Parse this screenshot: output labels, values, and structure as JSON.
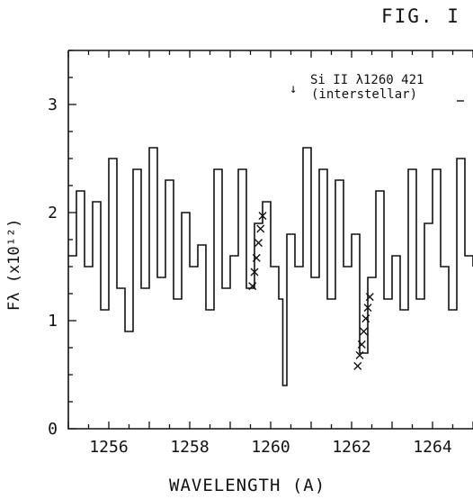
{
  "figure_label": "FIG. I",
  "chart_data": {
    "type": "line",
    "title": "",
    "xlabel": "WAVELENGTH (A)",
    "ylabel": "Fλ  (x10¹²)",
    "xlim": [
      1255.0,
      1265.0
    ],
    "ylim": [
      0,
      3.5
    ],
    "x_ticks": [
      1256,
      1258,
      1260,
      1262,
      1264
    ],
    "y_ticks": [
      0,
      1,
      2,
      3
    ],
    "grid": false,
    "series": [
      {
        "style": "histogram-step",
        "x": [
          1255.0,
          1255.2,
          1255.4,
          1255.6,
          1255.8,
          1256.0,
          1256.2,
          1256.4,
          1256.6,
          1256.8,
          1257.0,
          1257.2,
          1257.4,
          1257.6,
          1257.8,
          1258.0,
          1258.2,
          1258.4,
          1258.6,
          1258.8,
          1259.0,
          1259.2,
          1259.4,
          1259.6,
          1259.8,
          1260.0,
          1260.2,
          1260.3,
          1260.4,
          1260.6,
          1260.8,
          1261.0,
          1261.2,
          1261.4,
          1261.6,
          1261.8,
          1262.0,
          1262.2,
          1262.4,
          1262.6,
          1262.8,
          1263.0,
          1263.2,
          1263.4,
          1263.6,
          1263.8,
          1264.0,
          1264.2,
          1264.4,
          1264.6,
          1264.8,
          1265.0
        ],
        "y": [
          1.6,
          2.2,
          1.5,
          2.1,
          1.1,
          2.5,
          1.3,
          0.9,
          2.4,
          1.3,
          2.6,
          1.4,
          2.3,
          1.2,
          2.0,
          1.5,
          1.7,
          1.1,
          2.4,
          1.3,
          1.6,
          2.4,
          1.3,
          1.9,
          2.1,
          1.5,
          1.2,
          0.4,
          1.8,
          1.5,
          2.6,
          1.4,
          2.4,
          1.2,
          2.3,
          1.5,
          1.8,
          0.7,
          1.4,
          2.2,
          1.2,
          1.6,
          1.1,
          2.4,
          1.2,
          1.9,
          2.4,
          1.5,
          1.1,
          2.5,
          1.6,
          1.5
        ]
      },
      {
        "style": "cross-markers",
        "x": [
          1259.55,
          1259.6,
          1259.65,
          1259.7,
          1259.75,
          1259.8
        ],
        "y": [
          1.32,
          1.45,
          1.58,
          1.72,
          1.85,
          1.97
        ]
      },
      {
        "style": "cross-markers",
        "x": [
          1262.15,
          1262.2,
          1262.25,
          1262.3,
          1262.35,
          1262.4,
          1262.45
        ],
        "y": [
          0.58,
          0.68,
          0.78,
          0.9,
          1.02,
          1.12,
          1.22
        ]
      }
    ],
    "annotations": [
      {
        "text": "Si II λ1260 421",
        "arrow_x": 1260.3
      },
      {
        "text": "(interstellar)",
        "arrow_x": 1260.3
      }
    ]
  }
}
